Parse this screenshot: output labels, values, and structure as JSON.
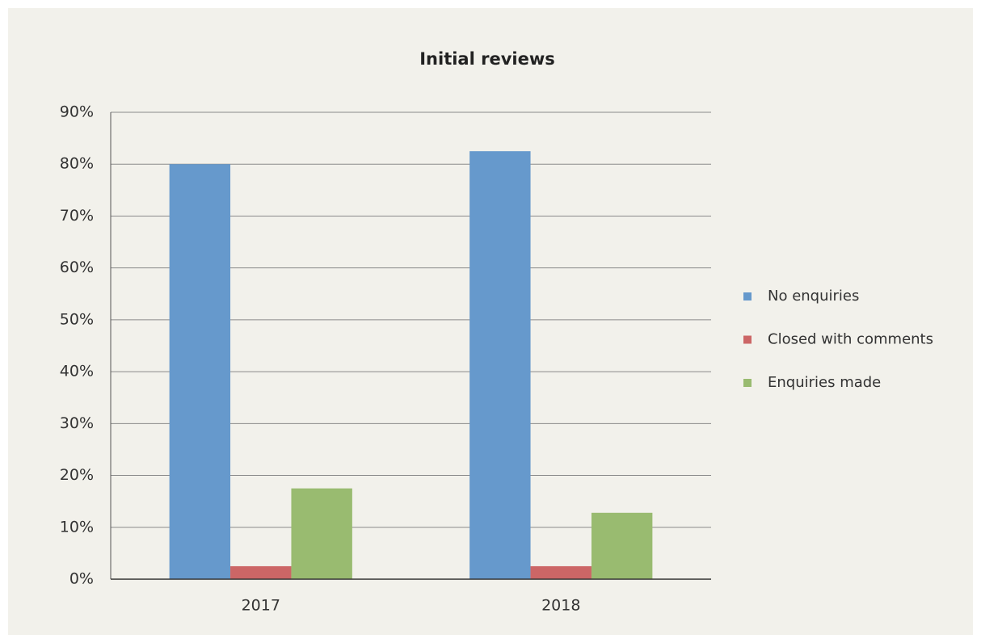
{
  "chart_data": {
    "type": "bar",
    "title": "Initial reviews",
    "categories": [
      "2017",
      "2018"
    ],
    "series": [
      {
        "name": "No enquiries",
        "color": "#6699cc",
        "values": [
          80,
          82.5
        ]
      },
      {
        "name": "Closed with comments",
        "color": "#cc6666",
        "values": [
          2.5,
          2.5
        ]
      },
      {
        "name": "Enquiries made",
        "color": "#99bb70",
        "values": [
          17.5,
          12.8
        ]
      }
    ],
    "ylim": [
      0,
      90
    ],
    "yticks": [
      {
        "value": 0,
        "label": "0%"
      },
      {
        "value": 10,
        "label": "10%"
      },
      {
        "value": 20,
        "label": "20%"
      },
      {
        "value": 30,
        "label": "30%"
      },
      {
        "value": 40,
        "label": "40%"
      },
      {
        "value": 50,
        "label": "50%"
      },
      {
        "value": 60,
        "label": "60%"
      },
      {
        "value": 70,
        "label": "70%"
      },
      {
        "value": 80,
        "label": "80%"
      },
      {
        "value": 90,
        "label": "90%"
      }
    ],
    "grid": true,
    "legend": "right"
  }
}
